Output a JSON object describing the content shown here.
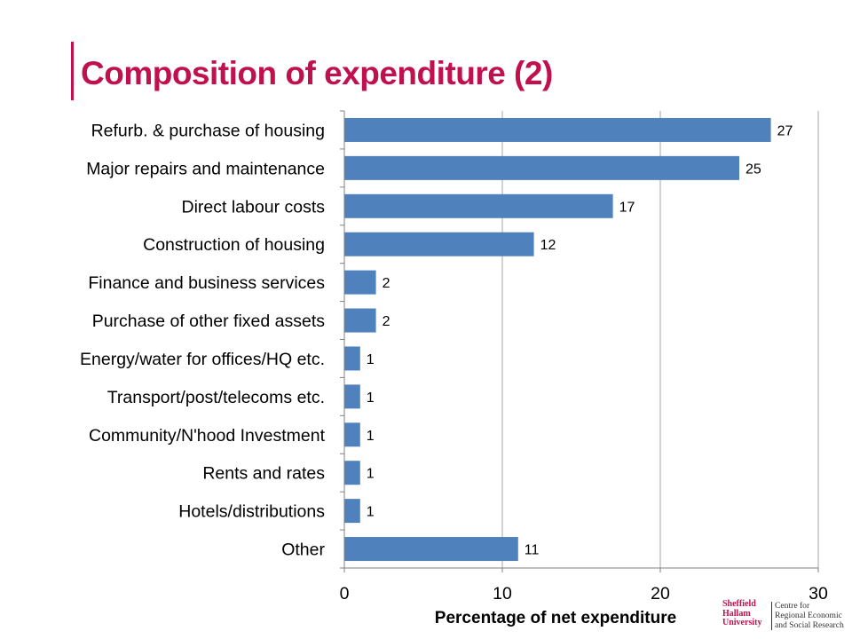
{
  "slide": {
    "title": "Composition of expenditure (2)"
  },
  "colors": {
    "title": "#c0104e",
    "accent_rule": "#c0104e",
    "bar": "#4f81bd",
    "grid": "#a6a6a6",
    "axis": "#808080",
    "text": "#000000",
    "logo": "#c0104e"
  },
  "chart_data": {
    "type": "bar",
    "orientation": "horizontal",
    "categories": [
      "Refurb. & purchase of housing",
      "Major repairs and maintenance",
      "Direct labour costs",
      "Construction of housing",
      "Finance and business services",
      "Purchase of other fixed assets",
      "Energy/water for offices/HQ etc.",
      "Transport/post/telecoms etc.",
      "Community/N'hood Investment",
      "Rents and rates",
      "Hotels/distributions",
      "Other"
    ],
    "values": [
      27,
      25,
      17,
      12,
      2,
      2,
      1,
      1,
      1,
      1,
      1,
      11
    ],
    "data_labels": [
      "27",
      "25",
      "17",
      "12",
      "2",
      "2",
      "1",
      "1",
      "1",
      "1",
      "1",
      "11"
    ],
    "xlim": [
      0,
      30
    ],
    "xticks": [
      0,
      10,
      20,
      30
    ],
    "xtick_labels": [
      "0",
      "10",
      "20",
      "30"
    ],
    "xlabel": "Percentage of net expenditure",
    "ylabel": "",
    "grid": "vertical",
    "legend": "none"
  },
  "footer": {
    "logo_icon": "sheffield-hallam-logo",
    "logo_lines": [
      "Sheffield",
      "Hallam",
      "University"
    ],
    "centre_lines": [
      "Centre for",
      "Regional Economic",
      "and Social Research"
    ]
  }
}
